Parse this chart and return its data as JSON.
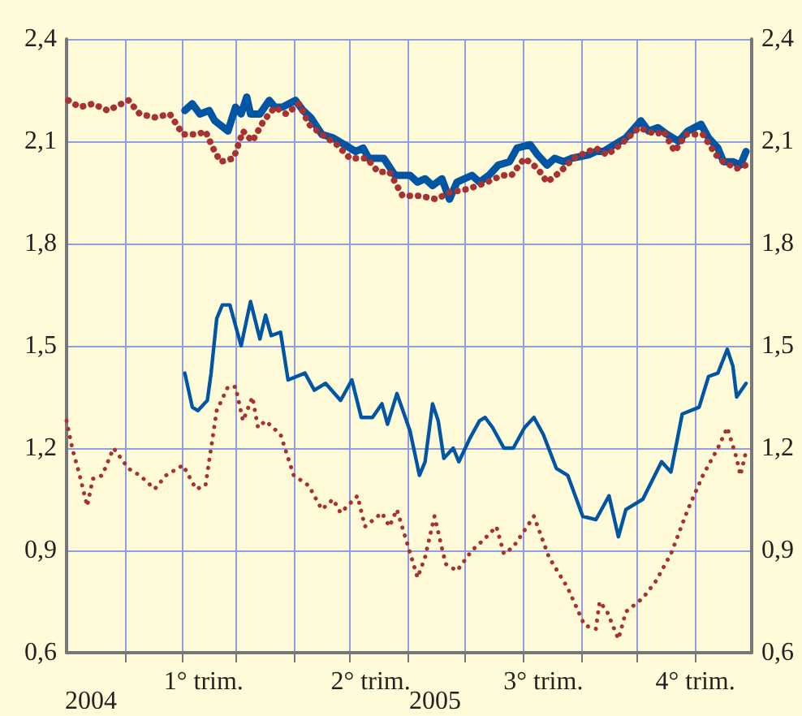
{
  "chart_data": {
    "type": "line",
    "xlim": [
      "2004-12-01",
      "2005-12-01"
    ],
    "ylim": [
      0.6,
      2.4
    ],
    "yticks": [
      {
        "value": 0.6,
        "label": "0,6"
      },
      {
        "value": 0.9,
        "label": "0,9"
      },
      {
        "value": 1.2,
        "label": "1,2"
      },
      {
        "value": 1.5,
        "label": "1,5"
      },
      {
        "value": 1.8,
        "label": "1,8"
      },
      {
        "value": 2.1,
        "label": "2,1"
      },
      {
        "value": 2.4,
        "label": "2,4"
      }
    ],
    "y2lim": [
      0.6,
      2.4
    ],
    "y2ticks": [
      {
        "value": 0.6,
        "label": "0,6"
      },
      {
        "value": 0.9,
        "label": "0,9"
      },
      {
        "value": 1.2,
        "label": "1,2"
      },
      {
        "value": 1.5,
        "label": "1,5"
      },
      {
        "value": 1.8,
        "label": "1,8"
      },
      {
        "value": 2.1,
        "label": "2,1"
      },
      {
        "value": 2.4,
        "label": "2,4"
      }
    ],
    "xticks": [
      {
        "value": "2005-01-01",
        "label": null
      },
      {
        "value": "2005-02-01",
        "label": null
      },
      {
        "value": "2005-03-01",
        "label": null
      },
      {
        "value": "2005-04-01",
        "label": null
      },
      {
        "value": "2005-05-01",
        "label": null
      },
      {
        "value": "2005-06-01",
        "label": null
      },
      {
        "value": "2005-07-01",
        "label": null
      },
      {
        "value": "2005-08-01",
        "label": null
      },
      {
        "value": "2005-09-01",
        "label": null
      },
      {
        "value": "2005-10-01",
        "label": null
      },
      {
        "value": "2005-11-01",
        "label": null
      },
      {
        "value": "2005-02-12",
        "label": "1° trim."
      },
      {
        "value": "2005-05-12",
        "label": "2° trim."
      },
      {
        "value": "2005-08-12",
        "label": "3° trim."
      },
      {
        "value": "2005-11-01",
        "label": "4° trim."
      }
    ],
    "grid": true,
    "annotations": [
      "2004",
      "2005"
    ],
    "series": [
      {
        "color": "#0055a5",
        "line_style": "solid",
        "x": [
          "2005-02-02",
          "2005-02-06",
          "2005-02-10",
          "2005-02-15",
          "2005-02-18",
          "2005-02-25",
          "2005-03-01",
          "2005-03-04",
          "2005-03-07",
          "2005-03-09",
          "2005-03-14",
          "2005-03-19",
          "2005-03-22",
          "2005-03-26",
          "2005-04-02",
          "2005-04-06",
          "2005-04-10",
          "2005-04-16",
          "2005-04-22",
          "2005-04-28",
          "2005-05-04",
          "2005-05-08",
          "2005-05-11",
          "2005-05-19",
          "2005-05-25",
          "2005-06-02",
          "2005-06-06",
          "2005-06-10",
          "2005-06-14",
          "2005-06-19",
          "2005-06-23",
          "2005-06-27",
          "2005-07-05",
          "2005-07-09",
          "2005-07-14",
          "2005-07-19",
          "2005-07-25",
          "2005-07-29",
          "2005-08-05",
          "2005-08-09",
          "2005-08-14",
          "2005-08-18",
          "2005-08-23",
          "2005-08-27",
          "2005-09-05",
          "2005-09-09",
          "2005-09-13",
          "2005-09-19",
          "2005-09-25",
          "2005-10-03",
          "2005-10-07",
          "2005-10-12",
          "2005-10-17",
          "2005-10-23",
          "2005-10-28",
          "2005-11-04",
          "2005-11-08",
          "2005-11-13",
          "2005-11-16",
          "2005-11-21",
          "2005-11-25",
          "2005-11-28"
        ],
        "values": [
          2.19,
          2.21,
          2.18,
          2.19,
          2.16,
          2.13,
          2.2,
          2.18,
          2.23,
          2.18,
          2.18,
          2.22,
          2.2,
          2.2,
          2.22,
          2.19,
          2.17,
          2.12,
          2.11,
          2.09,
          2.07,
          2.08,
          2.05,
          2.05,
          2.0,
          2.0,
          1.98,
          1.99,
          1.97,
          1.99,
          1.93,
          1.98,
          2.0,
          1.98,
          2.0,
          2.03,
          2.04,
          2.08,
          2.09,
          2.06,
          2.03,
          2.05,
          2.04,
          2.05,
          2.06,
          2.07,
          2.07,
          2.09,
          2.11,
          2.16,
          2.13,
          2.14,
          2.12,
          2.1,
          2.13,
          2.15,
          2.11,
          2.08,
          2.04,
          2.04,
          2.03,
          2.07
        ]
      },
      {
        "color": "#a83232",
        "line_style": "dotted",
        "x": [
          "2004-12-02",
          "2004-12-08",
          "2004-12-15",
          "2004-12-23",
          "2005-01-03",
          "2005-01-09",
          "2005-01-17",
          "2005-01-25",
          "2005-02-01",
          "2005-02-09",
          "2005-02-13",
          "2005-02-17",
          "2005-02-21",
          "2005-02-28",
          "2005-03-05",
          "2005-03-10",
          "2005-03-16",
          "2005-03-22",
          "2005-03-28",
          "2005-04-04",
          "2005-04-09",
          "2005-04-16",
          "2005-04-24",
          "2005-05-01",
          "2005-05-10",
          "2005-05-16",
          "2005-05-22",
          "2005-05-29",
          "2005-06-07",
          "2005-06-16",
          "2005-06-23",
          "2005-07-03",
          "2005-07-13",
          "2005-07-21",
          "2005-07-26",
          "2005-08-02",
          "2005-08-09",
          "2005-08-14",
          "2005-08-21",
          "2005-08-28",
          "2005-09-09",
          "2005-09-15",
          "2005-09-22",
          "2005-10-02",
          "2005-10-11",
          "2005-10-15",
          "2005-10-21",
          "2005-10-27",
          "2005-11-05",
          "2005-11-12",
          "2005-11-16",
          "2005-11-23",
          "2005-11-28"
        ],
        "values": [
          2.22,
          2.2,
          2.21,
          2.19,
          2.22,
          2.18,
          2.17,
          2.18,
          2.12,
          2.12,
          2.13,
          2.08,
          2.04,
          2.05,
          2.13,
          2.1,
          2.16,
          2.2,
          2.18,
          2.21,
          2.15,
          2.12,
          2.09,
          2.05,
          2.05,
          2.01,
          2.01,
          1.94,
          1.94,
          1.93,
          1.95,
          1.96,
          1.98,
          2.0,
          2.0,
          2.05,
          2.02,
          1.98,
          2.01,
          2.05,
          2.08,
          2.06,
          2.09,
          2.14,
          2.12,
          2.13,
          2.07,
          2.12,
          2.12,
          2.06,
          2.04,
          2.02,
          2.03
        ]
      },
      {
        "color": "#0055a5",
        "line_style": "solid",
        "x": [
          "2005-02-02",
          "2005-02-06",
          "2005-02-09",
          "2005-02-14",
          "2005-02-16",
          "2005-02-19",
          "2005-02-22",
          "2005-02-26",
          "2005-03-04",
          "2005-03-09",
          "2005-03-14",
          "2005-03-17",
          "2005-03-20",
          "2005-03-25",
          "2005-03-29",
          "2005-04-07",
          "2005-04-12",
          "2005-04-18",
          "2005-04-26",
          "2005-05-02",
          "2005-05-07",
          "2005-05-13",
          "2005-05-18",
          "2005-05-21",
          "2005-05-26",
          "2005-06-02",
          "2005-06-07",
          "2005-06-10",
          "2005-06-14",
          "2005-06-17",
          "2005-06-20",
          "2005-06-25",
          "2005-06-28",
          "2005-07-04",
          "2005-07-09",
          "2005-07-12",
          "2005-07-16",
          "2005-07-22",
          "2005-07-27",
          "2005-08-02",
          "2005-08-07",
          "2005-08-12",
          "2005-08-19",
          "2005-08-25",
          "2005-09-02",
          "2005-09-09",
          "2005-09-16",
          "2005-09-21",
          "2005-09-25",
          "2005-10-04",
          "2005-10-14",
          "2005-10-19",
          "2005-10-25",
          "2005-11-03",
          "2005-11-08",
          "2005-11-13",
          "2005-11-18",
          "2005-11-21",
          "2005-11-23",
          "2005-11-28"
        ],
        "values": [
          1.42,
          1.32,
          1.31,
          1.34,
          1.42,
          1.58,
          1.62,
          1.62,
          1.5,
          1.63,
          1.52,
          1.59,
          1.53,
          1.54,
          1.4,
          1.42,
          1.37,
          1.39,
          1.34,
          1.4,
          1.29,
          1.29,
          1.33,
          1.27,
          1.36,
          1.25,
          1.12,
          1.16,
          1.33,
          1.28,
          1.17,
          1.2,
          1.16,
          1.23,
          1.28,
          1.29,
          1.26,
          1.2,
          1.2,
          1.26,
          1.29,
          1.24,
          1.14,
          1.12,
          1.0,
          0.99,
          1.06,
          0.94,
          1.02,
          1.05,
          1.16,
          1.13,
          1.3,
          1.32,
          1.41,
          1.42,
          1.49,
          1.44,
          1.35,
          1.39
        ]
      },
      {
        "color": "#a83232",
        "line_style": "dotted",
        "x": [
          "2004-12-01",
          "2004-12-04",
          "2004-12-08",
          "2004-12-12",
          "2004-12-15",
          "2004-12-20",
          "2004-12-26",
          "2005-01-03",
          "2005-01-09",
          "2005-01-17",
          "2005-01-23",
          "2005-02-01",
          "2005-02-08",
          "2005-02-13",
          "2005-02-19",
          "2005-02-25",
          "2005-03-01",
          "2005-03-05",
          "2005-03-10",
          "2005-03-13",
          "2005-03-17",
          "2005-03-25",
          "2005-04-01",
          "2005-04-09",
          "2005-04-16",
          "2005-04-22",
          "2005-04-26",
          "2005-05-05",
          "2005-05-09",
          "2005-05-18",
          "2005-05-22",
          "2005-05-26",
          "2005-06-06",
          "2005-06-10",
          "2005-06-15",
          "2005-06-21",
          "2005-06-27",
          "2005-07-05",
          "2005-07-11",
          "2005-07-18",
          "2005-07-22",
          "2005-07-27",
          "2005-08-07",
          "2005-08-15",
          "2005-08-25",
          "2005-09-03",
          "2005-09-09",
          "2005-09-11",
          "2005-09-15",
          "2005-09-21",
          "2005-09-25",
          "2005-10-04",
          "2005-10-11",
          "2005-10-19",
          "2005-10-28",
          "2005-11-05",
          "2005-11-13",
          "2005-11-18",
          "2005-11-23",
          "2005-11-25",
          "2005-11-28"
        ],
        "values": [
          1.28,
          1.2,
          1.12,
          1.03,
          1.11,
          1.12,
          1.2,
          1.14,
          1.12,
          1.08,
          1.12,
          1.15,
          1.08,
          1.09,
          1.31,
          1.38,
          1.38,
          1.28,
          1.35,
          1.26,
          1.28,
          1.24,
          1.12,
          1.09,
          1.02,
          1.05,
          1.01,
          1.06,
          0.97,
          1.01,
          0.97,
          1.02,
          0.82,
          0.88,
          1.0,
          0.86,
          0.84,
          0.9,
          0.93,
          0.97,
          0.89,
          0.91,
          1.0,
          0.88,
          0.79,
          0.68,
          0.67,
          0.75,
          0.72,
          0.64,
          0.72,
          0.76,
          0.81,
          0.89,
          1.02,
          1.12,
          1.2,
          1.26,
          1.17,
          1.12,
          1.19
        ]
      }
    ]
  }
}
